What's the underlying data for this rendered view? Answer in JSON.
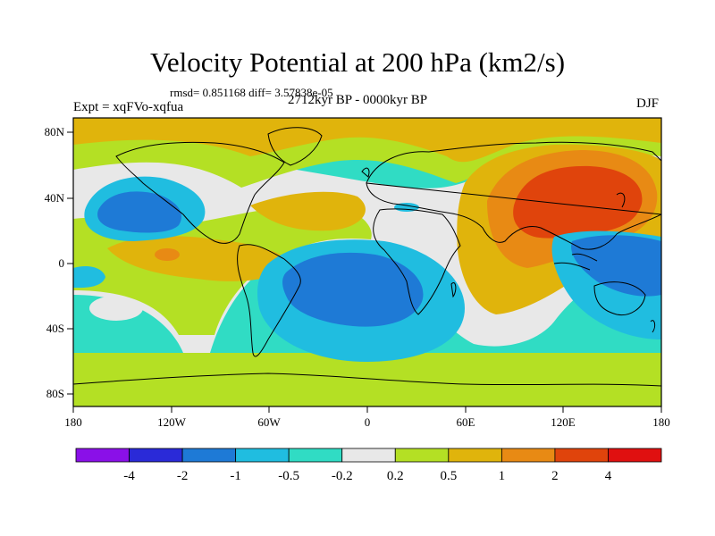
{
  "plot": {
    "title": "Velocity Potential at 200 hPa (km2/s)",
    "stats_line": "rmsd= 0.851168 diff= 3.57838e-05",
    "left_label": "Expt = xqFVo-xqfua",
    "center_label": "2712kyr BP - 0000kyr BP",
    "right_label": "DJF"
  },
  "axes": {
    "lon_ticks": [
      "180",
      "120W",
      "60W",
      "0",
      "60E",
      "120E",
      "180"
    ],
    "lat_ticks": [
      "80N",
      "40N",
      "0",
      "40S",
      "80S"
    ]
  },
  "colorbar": {
    "labels": [
      "-4",
      "-2",
      "-1",
      "-0.5",
      "-0.2",
      "0.2",
      "0.5",
      "1",
      "2",
      "4"
    ],
    "colors": [
      "#8a10e8",
      "#2a2ad8",
      "#1e7ad6",
      "#20bde0",
      "#30dcc4",
      "#e8e8e8",
      "#b4e024",
      "#e0b40c",
      "#e88a14",
      "#e0440c",
      "#e01010"
    ]
  }
}
